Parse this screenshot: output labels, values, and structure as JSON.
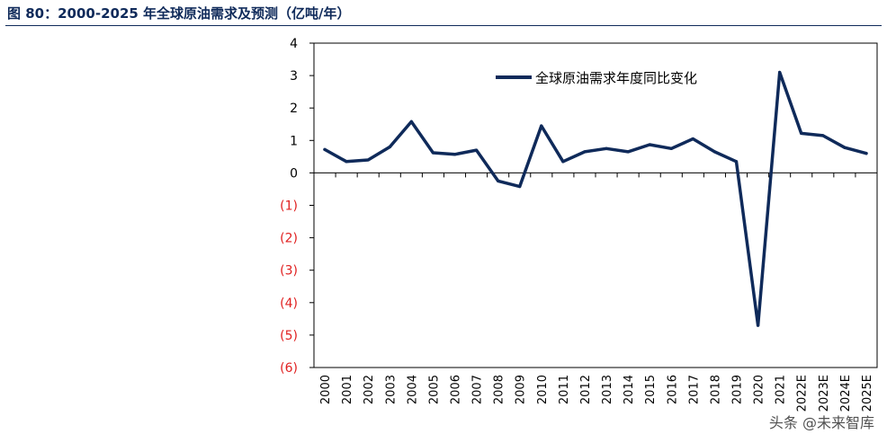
{
  "header": {
    "title": "图 80：2000-2025 年全球原油需求及预测（亿吨/年）"
  },
  "watermark": {
    "text": "头条 @未来智库"
  },
  "colors": {
    "line": "#0f2a5a",
    "title": "#0f2a5a",
    "negative_tick": "#e02020",
    "axis": "#000000"
  },
  "chart_data": {
    "type": "line",
    "categories": [
      "2000",
      "2001",
      "2002",
      "2003",
      "2004",
      "2005",
      "2006",
      "2007",
      "2008",
      "2009",
      "2010",
      "2011",
      "2012",
      "2013",
      "2014",
      "2015",
      "2016",
      "2017",
      "2018",
      "2019",
      "2020",
      "2021",
      "2022E",
      "2023E",
      "2024E",
      "2025E"
    ],
    "series": [
      {
        "name": "全球原油需求年度同比变化",
        "values": [
          0.72,
          0.35,
          0.4,
          0.8,
          1.58,
          0.62,
          0.57,
          0.7,
          -0.25,
          -0.42,
          1.45,
          0.35,
          0.65,
          0.75,
          0.65,
          0.87,
          0.75,
          1.05,
          0.65,
          0.35,
          -4.7,
          3.1,
          1.22,
          1.15,
          0.78,
          0.6
        ]
      }
    ],
    "ylim": [
      -6,
      4
    ],
    "yticks": [
      4,
      3,
      2,
      1,
      0,
      -1,
      -2,
      -3,
      -4,
      -5,
      -6
    ],
    "ytick_labels": [
      "4",
      "3",
      "2",
      "1",
      "0",
      "(1)",
      "(2)",
      "(3)",
      "(4)",
      "(5)",
      "(6)"
    ],
    "legend_position": "top",
    "grid": false
  }
}
